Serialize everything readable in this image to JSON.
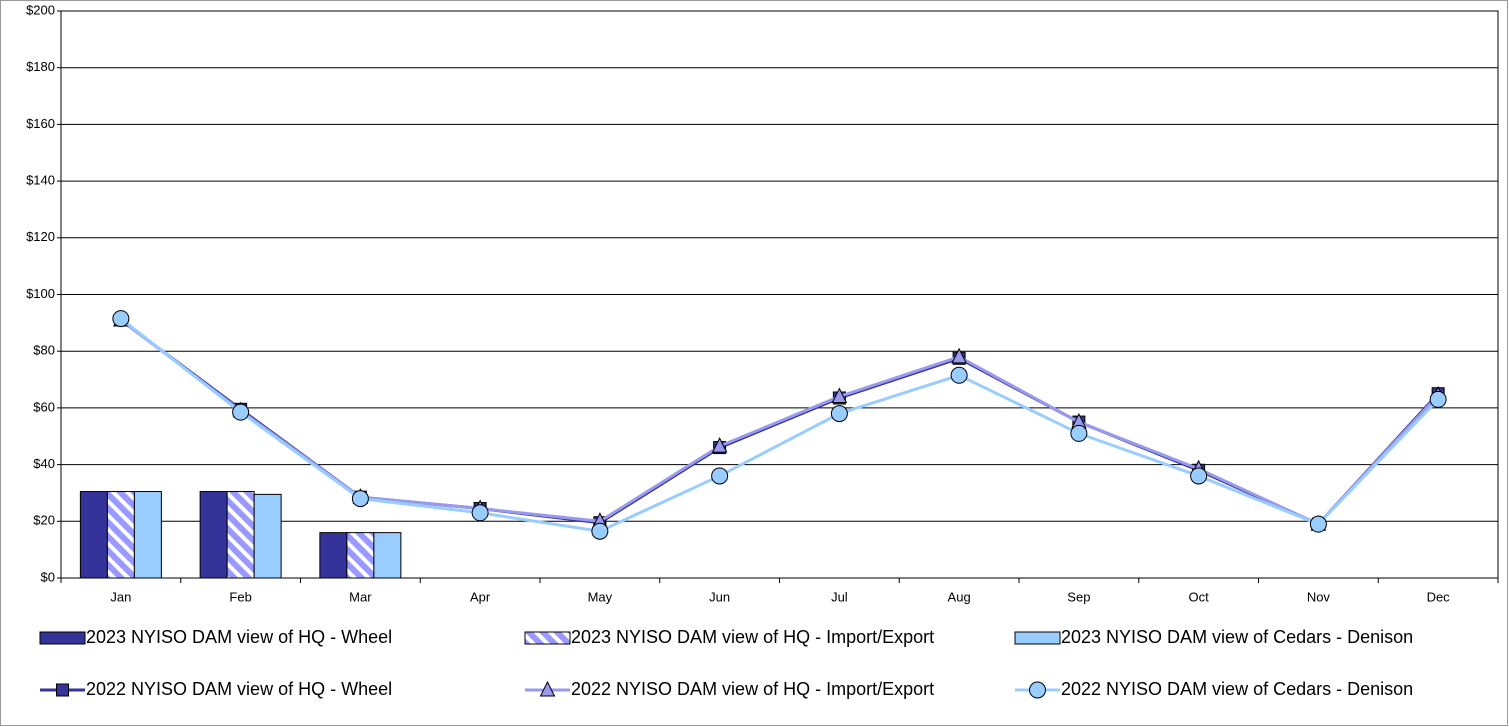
{
  "chart_data": {
    "type": "bar",
    "categories": [
      "Jan",
      "Feb",
      "Mar",
      "Apr",
      "May",
      "Jun",
      "Jul",
      "Aug",
      "Sep",
      "Oct",
      "Nov",
      "Dec"
    ],
    "ylim": [
      0,
      200
    ],
    "yticks": [
      {
        "value": 0,
        "label": "$0"
      },
      {
        "value": 20,
        "label": "$20"
      },
      {
        "value": 40,
        "label": "$40"
      },
      {
        "value": 60,
        "label": "$60"
      },
      {
        "value": 80,
        "label": "$80"
      },
      {
        "value": 100,
        "label": "$100"
      },
      {
        "value": 120,
        "label": "$120"
      },
      {
        "value": 140,
        "label": "$140"
      },
      {
        "value": 160,
        "label": "$160"
      },
      {
        "value": 180,
        "label": "$180"
      },
      {
        "value": 200,
        "label": "$200"
      }
    ],
    "grid": true,
    "legend": "bottom",
    "series": [
      {
        "name": "2023 NYISO DAM view of HQ - Wheel",
        "type": "bar",
        "color": "#333399",
        "values": [
          30.5,
          30.5,
          16,
          null,
          null,
          null,
          null,
          null,
          null,
          null,
          null,
          null
        ]
      },
      {
        "name": "2023 NYISO DAM view of HQ - Import/Export",
        "type": "bar",
        "color": "#9999ff",
        "pattern": "hatch",
        "values": [
          30.5,
          30.5,
          16,
          null,
          null,
          null,
          null,
          null,
          null,
          null,
          null,
          null
        ]
      },
      {
        "name": "2023 NYISO DAM view of Cedars - Denison",
        "type": "bar",
        "color": "#99ccff",
        "values": [
          30.5,
          29.5,
          16,
          null,
          null,
          null,
          null,
          null,
          null,
          null,
          null,
          null
        ]
      },
      {
        "name": "2022 NYISO DAM view of HQ - Wheel",
        "type": "line",
        "color": "#333399",
        "marker": "square",
        "values": [
          91,
          59.5,
          28.5,
          24.5,
          19.5,
          46,
          63.5,
          77.5,
          55,
          38,
          19,
          65
        ]
      },
      {
        "name": "2022 NYISO DAM view of HQ - Import/Export",
        "type": "line",
        "color": "#9999ee",
        "marker": "triangle",
        "values": [
          91,
          59,
          28.5,
          24.5,
          20,
          46.5,
          64,
          78,
          55,
          38.5,
          19,
          64.5
        ]
      },
      {
        "name": "2022 NYISO DAM view of Cedars - Denison",
        "type": "line",
        "color": "#99ccff",
        "marker": "circle",
        "values": [
          91.5,
          58.5,
          28,
          23,
          16.5,
          36,
          58,
          71.5,
          51,
          36,
          19,
          63
        ]
      }
    ]
  }
}
